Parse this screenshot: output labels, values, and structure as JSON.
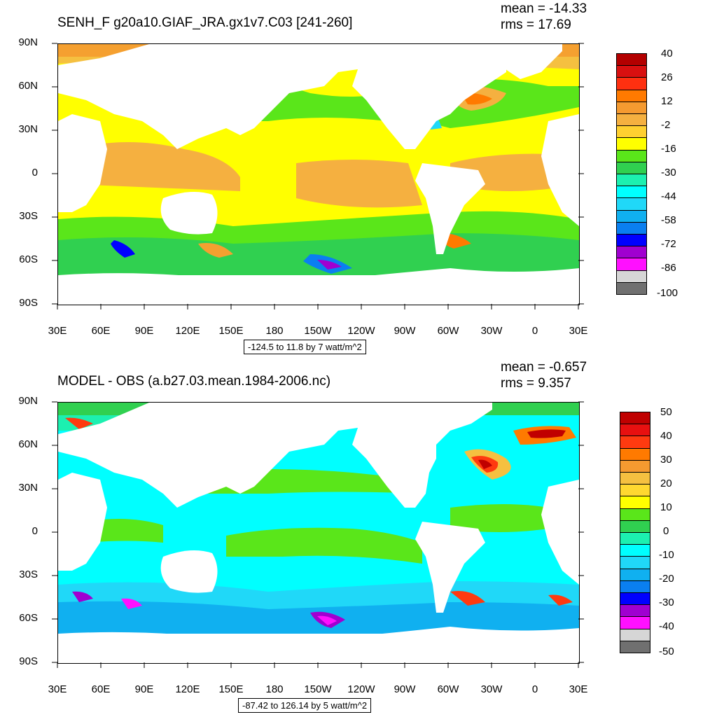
{
  "panels": [
    {
      "title": "SENH_F g20a10.GIAF_JRA.gx1v7.C03 [241-260]",
      "mean": "mean = -14.33",
      "rms": "rms = 17.69",
      "range_label": "-124.5 to 11.8 by 7 watt/m^2",
      "lat_labels": [
        "90N",
        "60N",
        "30N",
        "0",
        "30S",
        "60S",
        "90S"
      ],
      "lon_labels": [
        "30E",
        "60E",
        "90E",
        "120E",
        "150E",
        "180",
        "150W",
        "120W",
        "90W",
        "60W",
        "30W",
        "0",
        "30E"
      ],
      "colorbar": {
        "labels": [
          "40",
          "26",
          "12",
          "-2",
          "-16",
          "-30",
          "-44",
          "-58",
          "-72",
          "-86",
          "-100"
        ],
        "colors": [
          "#b30000",
          "#d81010",
          "#ff3010",
          "#ff7a00",
          "#f59a30",
          "#f5b040",
          "#ffd030",
          "#ffff00",
          "#5ae61a",
          "#30d050",
          "#1cf0b0",
          "#00ffff",
          "#20d8f8",
          "#10b0f0",
          "#0a7ff0",
          "#0000ff",
          "#a000d0",
          "#ff10ff",
          "#d6d6d6",
          "#707070"
        ]
      }
    },
    {
      "title": "MODEL - OBS (a.b27.03.mean.1984-2006.nc)",
      "mean": "mean = -0.657",
      "rms": "rms = 9.357",
      "range_label": "-87.42 to 126.14 by 5 watt/m^2",
      "lat_labels": [
        "90N",
        "60N",
        "30N",
        "0",
        "30S",
        "60S",
        "90S"
      ],
      "lon_labels": [
        "30E",
        "60E",
        "90E",
        "120E",
        "150E",
        "180",
        "150W",
        "120W",
        "90W",
        "60W",
        "30W",
        "0",
        "30E"
      ],
      "colorbar": {
        "labels": [
          "50",
          "40",
          "30",
          "20",
          "10",
          "0",
          "-10",
          "-20",
          "-30",
          "-40",
          "-50"
        ],
        "colors": [
          "#c00000",
          "#e81010",
          "#ff3a10",
          "#ff7a00",
          "#f59a30",
          "#f5c040",
          "#ffd830",
          "#ffff00",
          "#5ae61a",
          "#30d050",
          "#1cf0b0",
          "#00ffff",
          "#20d8f8",
          "#10b0f0",
          "#0a7ff0",
          "#0000ff",
          "#a000d0",
          "#ff10ff",
          "#d6d6d6",
          "#707070"
        ]
      }
    }
  ]
}
